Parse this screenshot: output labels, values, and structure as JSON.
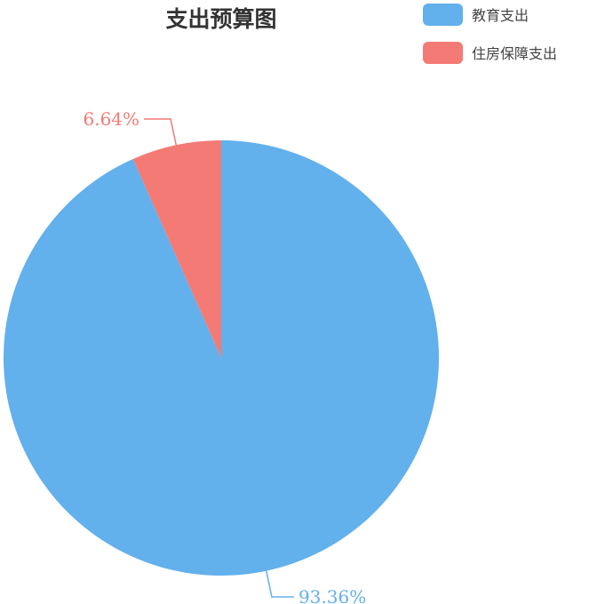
{
  "chart_data": {
    "type": "pie",
    "title": "支出预算图",
    "legend_position": "top-right",
    "slices": [
      {
        "name": "教育支出",
        "value": 93.36,
        "label": "93.36%",
        "color": "#62b0ec"
      },
      {
        "name": "住房保障支出",
        "value": 6.64,
        "label": "6.64%",
        "color": "#f47a75"
      }
    ]
  }
}
